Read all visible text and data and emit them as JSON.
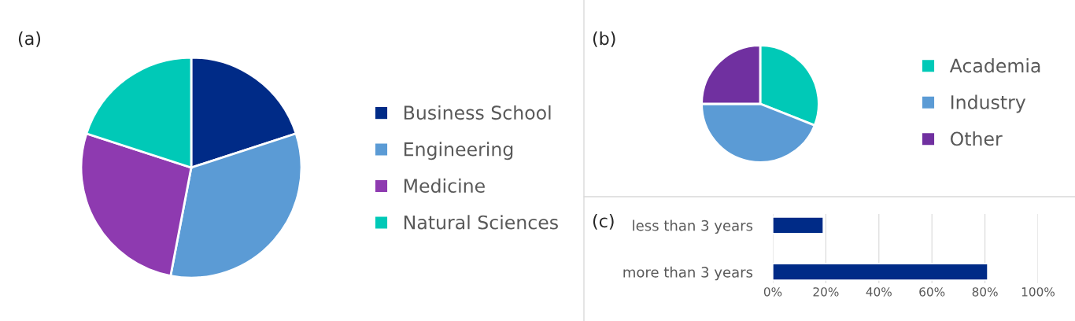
{
  "chart_data": [
    {
      "type": "pie",
      "title": "(a)",
      "categories": [
        "Business School",
        "Engineering",
        "Medicine",
        "Natural Sciences"
      ],
      "values": [
        20,
        33,
        27,
        20
      ],
      "colors": [
        "#002b87",
        "#5b9bd5",
        "#8e3ab0",
        "#00c9b7"
      ],
      "legend": "right"
    },
    {
      "type": "pie",
      "title": "(b)",
      "categories": [
        "Academia",
        "Industry",
        "Other"
      ],
      "values": [
        31,
        44,
        25
      ],
      "colors": [
        "#00c9b7",
        "#5b9bd5",
        "#7030a0"
      ],
      "legend": "right"
    },
    {
      "type": "bar",
      "title": "(c)",
      "orientation": "horizontal",
      "categories": [
        "less than 3 years",
        "more than 3 years"
      ],
      "values": [
        19,
        81
      ],
      "color": "#002b87",
      "xlim": [
        0,
        100
      ],
      "xticks": [
        {
          "value": 0,
          "label": "0%"
        },
        {
          "value": 20,
          "label": "20%"
        },
        {
          "value": 40,
          "label": "40%"
        },
        {
          "value": 60,
          "label": "60%"
        },
        {
          "value": 80,
          "label": "80%"
        },
        {
          "value": 100,
          "label": "100%"
        }
      ],
      "grid": "x"
    }
  ]
}
